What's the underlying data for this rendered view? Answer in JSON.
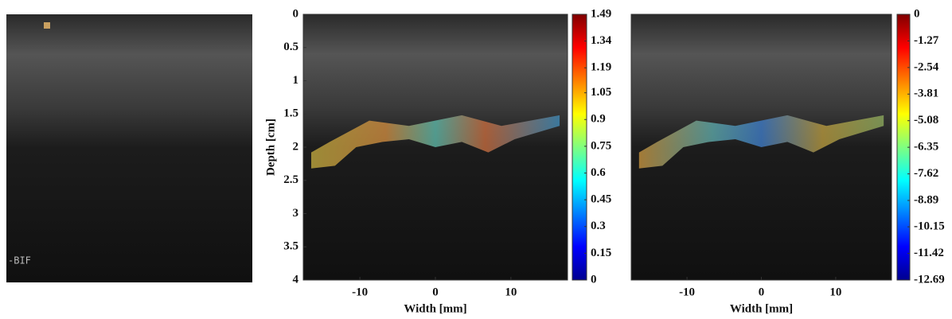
{
  "left_panel": {
    "label": "-BIF"
  },
  "panels": [
    {
      "xlabel": "Width [mm]",
      "ylabel": "Depth [cm]",
      "xlim": [
        -17.5,
        17.5
      ],
      "xticks": [
        -10,
        0,
        10
      ],
      "ylim": [
        0,
        4
      ],
      "yticks": [
        0,
        0.5,
        1,
        1.5,
        2,
        2.5,
        3,
        3.5,
        4
      ],
      "colorbar": {
        "lim": [
          0,
          1.49
        ],
        "ticks": [
          0,
          0.15,
          0.3,
          0.45,
          0.6,
          0.75,
          0.9,
          1.05,
          1.19,
          1.34,
          1.49
        ]
      }
    },
    {
      "xlabel": "Width [mm]",
      "xlim": [
        -17.5,
        17.5
      ],
      "xticks": [
        -10,
        0,
        10
      ],
      "colorbar": {
        "lim": [
          -12.69,
          0
        ],
        "ticks": [
          -12.69,
          -11.42,
          -10.15,
          -8.89,
          -7.62,
          -6.35,
          -5.08,
          -3.81,
          -2.54,
          -1.27,
          0
        ]
      }
    }
  ]
}
